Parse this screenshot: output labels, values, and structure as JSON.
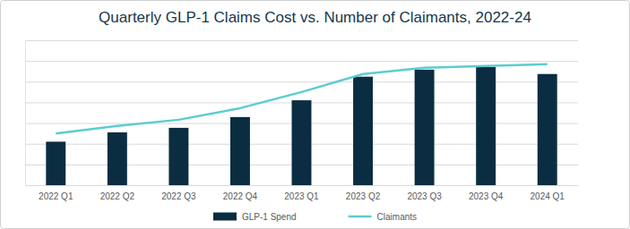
{
  "chart_data": {
    "type": "bar",
    "title": "Quarterly GLP-1 Claims Cost vs. Number of Claimants, 2022-24",
    "categories": [
      "2022 Q1",
      "2022 Q2",
      "2022 Q3",
      "2022 Q4",
      "2023 Q1",
      "2023 Q2",
      "2023 Q3",
      "2023 Q4",
      "2024 Q1"
    ],
    "series": [
      {
        "name": "GLP-1 Spend",
        "type": "bar",
        "color": "#0b2d41",
        "values": [
          2.1,
          2.55,
          2.77,
          3.29,
          4.1,
          5.24,
          5.58,
          5.71,
          5.37
        ]
      },
      {
        "name": "Claimants",
        "type": "line",
        "color": "#5bcdd0",
        "values": [
          2.5,
          2.86,
          3.16,
          3.72,
          4.5,
          5.37,
          5.67,
          5.76,
          5.84
        ]
      }
    ],
    "ylim": [
      0,
      7
    ],
    "yticks": [
      0,
      1,
      2,
      3,
      4,
      5,
      6,
      7
    ],
    "grid": true,
    "legend": "bottom",
    "tick_labels": "x"
  }
}
